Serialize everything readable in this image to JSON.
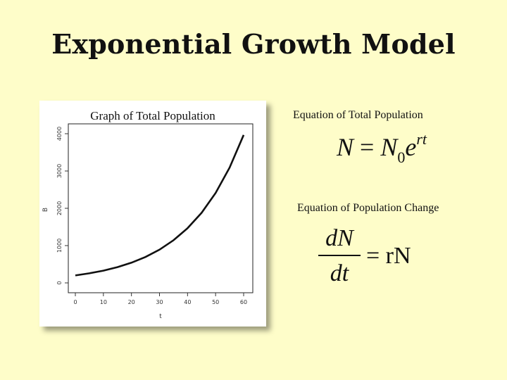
{
  "slide": {
    "title": "Exponential Growth Model"
  },
  "left_panel": {
    "chart_title": "Graph of Total Population"
  },
  "equations": {
    "total_label": "Equation of Total Population",
    "total_lhs": "N",
    "total_eq": " = ",
    "total_base": "N",
    "total_sub": "0",
    "total_e": "e",
    "total_exp": "rt",
    "change_label": "Equation of Population Change",
    "change_num": "dN",
    "change_den": "dt",
    "change_rhs": "= rN"
  },
  "chart_data": {
    "type": "line",
    "title": "Graph of Total Population",
    "xlabel": "t",
    "ylabel": "B",
    "xlim": [
      0,
      60
    ],
    "ylim": [
      0,
      4000
    ],
    "xticks": [
      0,
      10,
      20,
      30,
      40,
      50,
      60
    ],
    "yticks": [
      0,
      1000,
      2000,
      3000,
      4000
    ],
    "grid": false,
    "legend": "none",
    "series": [
      {
        "color": "#111111",
        "x": [
          0,
          5,
          10,
          15,
          20,
          25,
          30,
          35,
          40,
          45,
          50,
          55,
          60
        ],
        "y": [
          200,
          257,
          329,
          422,
          542,
          695,
          891,
          1143,
          1466,
          1880,
          2411,
          3093,
          3966
        ]
      }
    ]
  }
}
